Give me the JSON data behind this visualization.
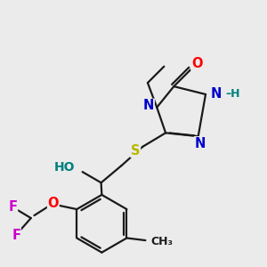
{
  "bg_color": "#ebebeb",
  "bond_color": "#1a1a1a",
  "colors": {
    "N": "#0000cc",
    "O": "#ff0000",
    "S": "#b8b800",
    "F": "#cc00cc",
    "HO": "#008080",
    "H_label": "#008080",
    "C": "#1a1a1a"
  },
  "font_size_atom": 10.5,
  "font_size_small": 9,
  "line_width": 1.6
}
